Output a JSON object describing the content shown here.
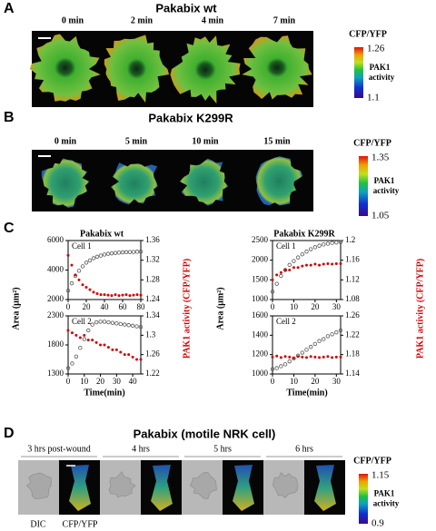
{
  "panel_a": {
    "label": "A",
    "title": "Pakabix wt",
    "times": [
      "0 min",
      "2 min",
      "4 min",
      "7 min"
    ],
    "colorbar": {
      "title": "CFP/YFP",
      "max": 1.26,
      "label": [
        "PAK1",
        "activity"
      ],
      "min": 1.1
    }
  },
  "panel_b": {
    "label": "B",
    "title": "Pakabix K299R",
    "times": [
      "0 min",
      "5 min",
      "10 min",
      "15 min"
    ],
    "colorbar": {
      "title": "CFP/YFP",
      "max": 1.35,
      "label": [
        "PAK1",
        "activity"
      ],
      "min": 1.05
    }
  },
  "panel_c": {
    "label": "C",
    "columns": [
      "Pakabix wt",
      "Pakabix K299R"
    ],
    "ylabel": "Area (µm²)",
    "y2label": "PAK1 activity (CFP/YFP)",
    "xlabel": "Time(min)"
  },
  "chart_data": [
    {
      "type": "scatter",
      "annotation": "Cell 1",
      "x": [
        0,
        4,
        8,
        12,
        16,
        20,
        24,
        28,
        32,
        36,
        40,
        44,
        48,
        52,
        56,
        60,
        64,
        68,
        72,
        76,
        80
      ],
      "xlim": [
        0,
        80
      ],
      "xticks": [
        0,
        20,
        40,
        60,
        80
      ],
      "ylim": [
        2000,
        6000
      ],
      "yticks": [
        2000,
        4000,
        6000
      ],
      "y2lim": [
        1.24,
        1.36
      ],
      "y2ticks": [
        1.24,
        1.28,
        1.32,
        1.36
      ],
      "series": [
        {
          "color": "#555555",
          "values": [
            2600,
            3100,
            3600,
            3950,
            4250,
            4500,
            4650,
            4800,
            4900,
            4980,
            5050,
            5100,
            5130,
            5160,
            5180,
            5200,
            5210,
            5220,
            5230,
            5240,
            5250
          ]
        },
        {
          "color": "#d40000",
          "axis": "y2",
          "values": [
            1.33,
            1.31,
            1.29,
            1.28,
            1.27,
            1.265,
            1.26,
            1.255,
            1.252,
            1.25,
            1.25,
            1.249,
            1.248,
            1.25,
            1.248,
            1.249,
            1.25,
            1.248,
            1.249,
            1.25,
            1.249
          ]
        }
      ]
    },
    {
      "type": "scatter",
      "annotation": "Cell 2",
      "x": [
        0,
        2.5,
        5,
        7.5,
        10,
        12.5,
        15,
        17.5,
        20,
        22.5,
        25,
        27.5,
        30,
        32.5,
        35,
        37.5,
        40,
        42.5,
        45
      ],
      "xlim": [
        0,
        45
      ],
      "xticks": [
        0,
        10,
        20,
        30,
        40
      ],
      "ylim": [
        1300,
        2300
      ],
      "yticks": [
        1300,
        1800,
        2300
      ],
      "y2lim": [
        1.22,
        1.34
      ],
      "y2ticks": [
        1.22,
        1.26,
        1.3,
        1.34
      ],
      "series": [
        {
          "color": "#555555",
          "values": [
            1400,
            1480,
            1600,
            1750,
            1900,
            2050,
            2150,
            2190,
            2200,
            2200,
            2190,
            2180,
            2170,
            2160,
            2150,
            2140,
            2130,
            2120,
            2110
          ]
        },
        {
          "color": "#d40000",
          "axis": "y2",
          "values": [
            1.31,
            1.305,
            1.3,
            1.295,
            1.3,
            1.29,
            1.29,
            1.285,
            1.28,
            1.28,
            1.275,
            1.27,
            1.27,
            1.265,
            1.26,
            1.26,
            1.255,
            1.25,
            1.25
          ]
        }
      ]
    },
    {
      "type": "scatter",
      "annotation": "Cell 1",
      "x": [
        0,
        2,
        4,
        6,
        8,
        10,
        12,
        14,
        16,
        18,
        20,
        22,
        24,
        26,
        28,
        30,
        32
      ],
      "xlim": [
        0,
        32
      ],
      "xticks": [
        0,
        10,
        20,
        30
      ],
      "ylim": [
        1000,
        2500
      ],
      "yticks": [
        1000,
        1500,
        2000,
        2500
      ],
      "y2lim": [
        1.08,
        1.2
      ],
      "y2ticks": [
        1.08,
        1.12,
        1.16,
        1.2
      ],
      "series": [
        {
          "color": "#555555",
          "values": [
            1200,
            1400,
            1600,
            1750,
            1880,
            1980,
            2070,
            2150,
            2220,
            2280,
            2330,
            2370,
            2400,
            2420,
            2440,
            2450,
            2460
          ]
        },
        {
          "color": "#d40000",
          "axis": "y2",
          "values": [
            1.12,
            1.13,
            1.135,
            1.14,
            1.14,
            1.145,
            1.145,
            1.148,
            1.15,
            1.15,
            1.152,
            1.15,
            1.152,
            1.153,
            1.152,
            1.153,
            1.153
          ]
        }
      ]
    },
    {
      "type": "scatter",
      "annotation": "Cell 2",
      "x": [
        0,
        2,
        4,
        6,
        8,
        10,
        12,
        14,
        16,
        18,
        20,
        22,
        24,
        26,
        28,
        30,
        32
      ],
      "xlim": [
        0,
        32
      ],
      "xticks": [
        0,
        10,
        20,
        30
      ],
      "ylim": [
        1000,
        1600
      ],
      "yticks": [
        1000,
        1200,
        1400,
        1600
      ],
      "y2lim": [
        1.14,
        1.26
      ],
      "y2ticks": [
        1.14,
        1.18,
        1.22,
        1.26
      ],
      "series": [
        {
          "color": "#555555",
          "values": [
            1050,
            1060,
            1080,
            1100,
            1130,
            1160,
            1190,
            1220,
            1250,
            1280,
            1310,
            1340,
            1360,
            1390,
            1410,
            1430,
            1450
          ]
        },
        {
          "color": "#d40000",
          "axis": "y2",
          "values": [
            1.175,
            1.177,
            1.174,
            1.176,
            1.175,
            1.173,
            1.176,
            1.175,
            1.174,
            1.176,
            1.175,
            1.174,
            1.175,
            1.176,
            1.174,
            1.175,
            1.175
          ]
        }
      ]
    }
  ],
  "panel_d": {
    "label": "D",
    "title": "Pakabix (motile NRK cell)",
    "times": [
      "3 hrs post-wound",
      "4 hrs",
      "5 hrs",
      "6 hrs"
    ],
    "channels": [
      "DIC",
      "CFP/YFP"
    ],
    "colorbar": {
      "title": "CFP/YFP",
      "max": 1.15,
      "label": [
        "PAK1",
        "activity"
      ],
      "min": 0.9
    }
  }
}
